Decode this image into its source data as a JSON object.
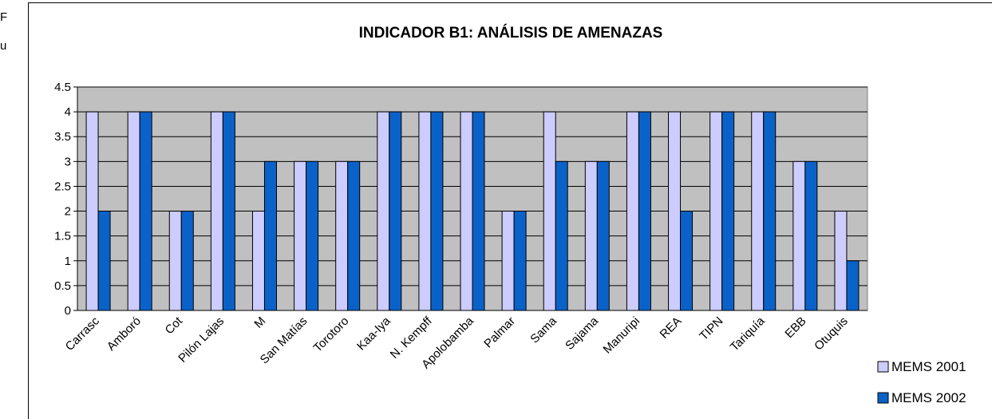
{
  "fragments": [
    "F",
    "u"
  ],
  "chart_data": {
    "type": "bar",
    "title": "INDICADOR B1: ANÁLISIS DE AMENAZAS",
    "categories": [
      "Carrasc",
      "Amboró",
      "Cot",
      "Pilón Lajas",
      "M",
      "San Matías",
      "Torotoro",
      "Kaa-Iya",
      "N. Kempff",
      "Apolobamba",
      "Palmar",
      "Sama",
      "Sajama",
      "Manuripi",
      "REA",
      "TIPN",
      "Tariquía",
      "EBB",
      "Otuquis"
    ],
    "series": [
      {
        "name": "MEMS 2001",
        "color": "#ccccff",
        "values": [
          4,
          4,
          2,
          4,
          2,
          3,
          3,
          4,
          4,
          4,
          2,
          4,
          3,
          4,
          4,
          4,
          4,
          3,
          2
        ]
      },
      {
        "name": "MEMS 2002",
        "color": "#0a62c9",
        "values": [
          2,
          4,
          2,
          4,
          3,
          3,
          3,
          4,
          4,
          4,
          2,
          3,
          3,
          4,
          2,
          4,
          4,
          3,
          1
        ]
      }
    ],
    "ylim": [
      0,
      4.5
    ],
    "yticks": [
      0,
      0.5,
      1,
      1.5,
      2,
      2.5,
      3,
      3.5,
      4,
      4.5
    ],
    "grid": true,
    "background": "#c0c0c0",
    "legend": "right"
  }
}
